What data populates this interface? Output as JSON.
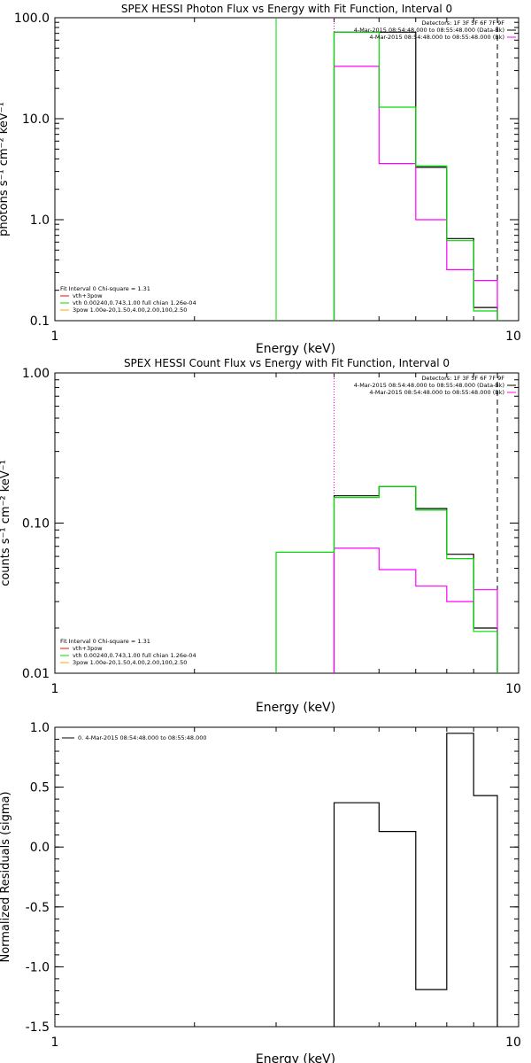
{
  "chart_data": [
    {
      "type": "line",
      "title": "SPEX HESSI Photon Flux vs Energy with Fit Function, Interval 0",
      "xlabel": "Energy (keV)",
      "ylabel": "photons s⁻¹ cm⁻² keV⁻¹",
      "xscale": "log",
      "yscale": "log",
      "xlim": [
        1,
        10
      ],
      "ylim": [
        0.1,
        100
      ],
      "x_ticks": [
        "1",
        "10"
      ],
      "y_ticks": [
        "100.0",
        "10.0",
        "1.0",
        "0.1"
      ],
      "y_tick_values": [
        100,
        10,
        1,
        0.1
      ],
      "x_bin_edges": [
        4,
        5,
        6,
        7,
        8,
        9
      ],
      "series": [
        {
          "name": "4-Mar-2015 08:54:48.000 to 08:55:48.000 (Data-Bk)",
          "color": "#000000",
          "values": [
            72,
            72,
            3.3,
            0.65,
            0.135
          ]
        },
        {
          "name": "4-Mar-2015 08:54:48.000 to 08:55:48.000 (Bk)",
          "color": "#ff00ff",
          "values": [
            33,
            3.6,
            1.0,
            0.32,
            0.25
          ]
        },
        {
          "name": "vth 0.00240,0.743,1.00  full chian 1.26e-04",
          "color": "#00dd00",
          "values": [
            72,
            13,
            3.4,
            0.62,
            0.125
          ]
        }
      ],
      "vertical_markers": [
        {
          "x": 3.0,
          "color": "#00dd00",
          "style": "solid",
          "note": "green line from top"
        },
        {
          "x": 4.0,
          "color": "#ff00ff",
          "style": "dotted"
        },
        {
          "x": 9.0,
          "color": "#000000",
          "style": "dashed"
        }
      ],
      "legend_top": [
        "Detectors: 1F 3F 5F 6F 7F 9F",
        "4-Mar-2015 08:54:48.000 to 08:55:48.000 (Data-Bk)",
        "4-Mar-2015 08:54:48.000 to 08:55:48.000 (Bk)"
      ],
      "legend_bottom": [
        {
          "text": "Fit Interval  0    Chi-square = 1.31",
          "color": "#000000"
        },
        {
          "text": "vth+3pow",
          "color": "#ff0000"
        },
        {
          "text": "vth 0.00240,0.743,1.00  full chian 1.26e-04",
          "color": "#00dd00"
        },
        {
          "text": "3pow 1.00e-20,1.50,4.00,2.00,100,2.50",
          "color": "#ffaa00"
        }
      ]
    },
    {
      "type": "line",
      "title": "SPEX HESSI Count Flux vs Energy with Fit Function, Interval 0",
      "xlabel": "Energy (keV)",
      "ylabel": "counts s⁻¹ cm⁻² keV⁻¹",
      "xscale": "log",
      "yscale": "log",
      "xlim": [
        1,
        10
      ],
      "ylim": [
        0.01,
        1
      ],
      "x_ticks": [
        "1",
        "10"
      ],
      "y_ticks": [
        "1.00",
        "0.10",
        "0.01"
      ],
      "y_tick_values": [
        1,
        0.1,
        0.01
      ],
      "x_bin_edges": [
        3,
        4,
        5,
        6,
        7,
        8,
        9
      ],
      "series": [
        {
          "name": "4-Mar-2015 08:54:48.000 to 08:55:48.000 (Data-Bk)",
          "color": "#000000",
          "values": [
            null,
            0.152,
            0.175,
            0.125,
            0.062,
            0.02
          ]
        },
        {
          "name": "4-Mar-2015 08:54:48.000 to 08:55:48.000 (Bk)",
          "color": "#ff00ff",
          "values": [
            null,
            0.068,
            0.049,
            0.038,
            0.03,
            0.036
          ]
        },
        {
          "name": "vth 0.00240,0.743,1.00  full chian 1.26e-04",
          "color": "#00dd00",
          "values": [
            0.064,
            0.148,
            0.175,
            0.122,
            0.058,
            0.019
          ]
        }
      ],
      "vertical_markers": [
        {
          "x": 4.0,
          "color": "#ff00ff",
          "style": "dotted"
        },
        {
          "x": 9.0,
          "color": "#000000",
          "style": "dashed"
        }
      ],
      "legend_top": [
        "Detectors: 1F 3F 5F 6F 7F 9F",
        "4-Mar-2015 08:54:48.000 to 08:55:48.000 (Data-Bk)",
        "4-Mar-2015 08:54:48.000 to 08:55:48.000 (Bk)"
      ],
      "legend_bottom": [
        {
          "text": "Fit Interval  0    Chi-square = 1.31",
          "color": "#000000"
        },
        {
          "text": "vth+3pow",
          "color": "#ff0000"
        },
        {
          "text": "vth 0.00240,0.743,1.00  full chian 1.26e-04",
          "color": "#00dd00"
        },
        {
          "text": "3pow 1.00e-20,1.50,4.00,2.00,100,2.50",
          "color": "#ffaa00"
        }
      ]
    },
    {
      "type": "line",
      "title": "",
      "xlabel": "Energy (keV)",
      "ylabel": "Normalized Residuals (sigma)",
      "xscale": "log",
      "yscale": "linear",
      "xlim": [
        1,
        10
      ],
      "ylim": [
        -1.5,
        1.0
      ],
      "x_ticks": [
        "1",
        "10"
      ],
      "y_ticks": [
        "1.0",
        "0.5",
        "0.0",
        "-0.5",
        "-1.0",
        "-1.5"
      ],
      "y_tick_values": [
        1.0,
        0.5,
        0.0,
        -0.5,
        -1.0,
        -1.5
      ],
      "x_bin_edges": [
        4,
        5,
        6,
        7,
        8,
        9
      ],
      "series": [
        {
          "name": "0.  4-Mar-2015 08:54:48.000 to 08:55:48.000",
          "color": "#000000",
          "values": [
            0.37,
            0.13,
            -1.19,
            0.95,
            0.43
          ]
        }
      ],
      "baseline": -1.5,
      "legend_top": [
        "0.  4-Mar-2015 08:54:48.000 to 08:55:48.000"
      ]
    }
  ]
}
